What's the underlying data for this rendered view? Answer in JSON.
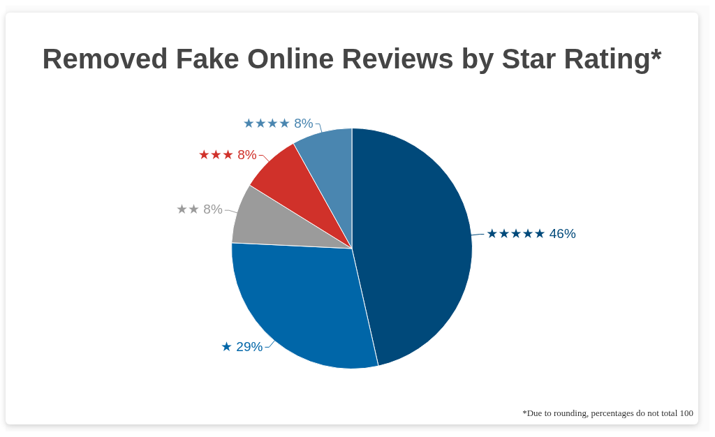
{
  "chart_data": {
    "type": "pie",
    "title": "Removed Fake Online Reviews by Star Rating*",
    "categories": [
      "★★★★★",
      "★",
      "★★",
      "★★★",
      "★★★★"
    ],
    "values": [
      46,
      29,
      8,
      8,
      8
    ],
    "value_labels": [
      "46%",
      "29%",
      "8%",
      "8%",
      "8%"
    ],
    "colors": [
      "#00497a",
      "#0066a8",
      "#9b9b9b",
      "#d0312a",
      "#4a86b0"
    ],
    "annotations": [
      "*Due to rounding, percentages do not total 100"
    ]
  }
}
